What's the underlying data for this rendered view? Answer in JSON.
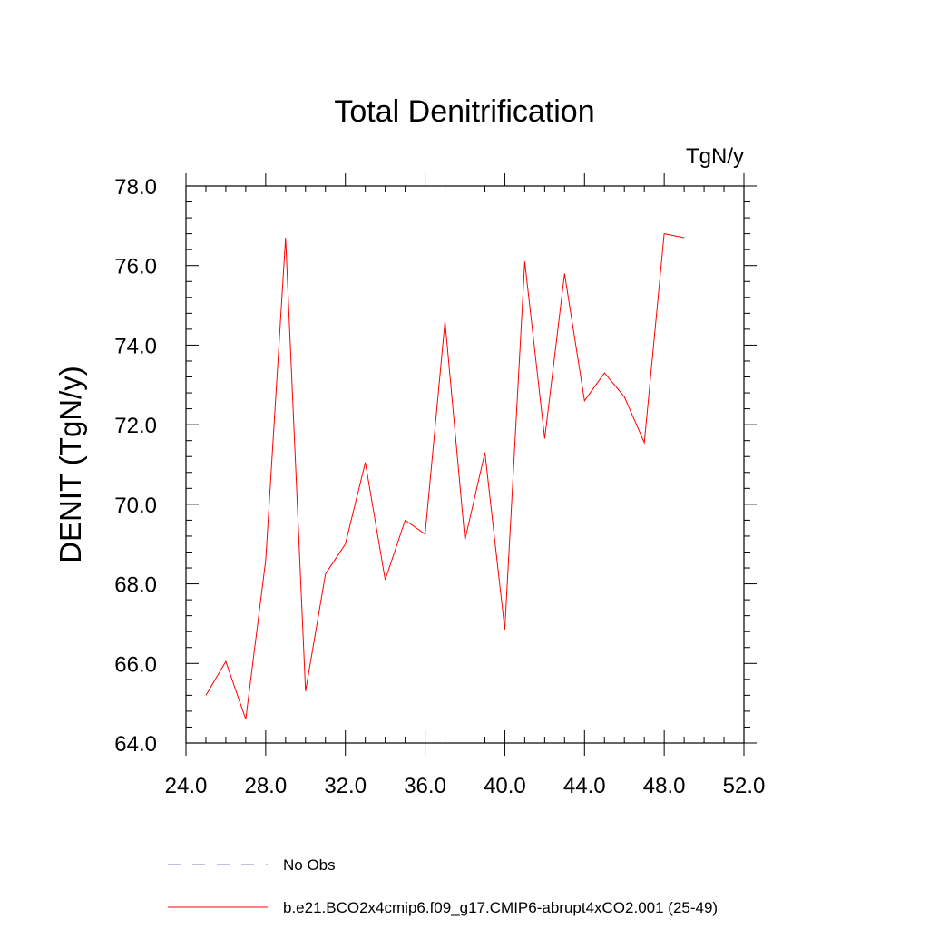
{
  "chart_data": {
    "type": "line",
    "title": "Total Denitrification",
    "units_label": "TgN/y",
    "xlabel": "",
    "ylabel": "DENIT  (TgN/y)",
    "xlim": [
      24,
      52
    ],
    "ylim": [
      64,
      78
    ],
    "x_ticks": [
      24,
      28,
      32,
      36,
      40,
      44,
      48,
      52
    ],
    "x_tick_labels": [
      "24.0",
      "28.0",
      "32.0",
      "36.0",
      "40.0",
      "44.0",
      "48.0",
      "52.0"
    ],
    "y_ticks": [
      64,
      66,
      68,
      70,
      72,
      74,
      76,
      78
    ],
    "y_tick_labels": [
      "64.0",
      "66.0",
      "68.0",
      "70.0",
      "72.0",
      "74.0",
      "76.0",
      "78.0"
    ],
    "x_minor_step": 1,
    "y_minor_step": 0.4,
    "grid": false,
    "legend_position": "bottom",
    "series": [
      {
        "name": "b.e21.BCO2x4cmip6.f09_g17.CMIP6-abrupt4xCO2.001 (25-49)",
        "color": "#ff0000",
        "style": "solid",
        "x": [
          25,
          26,
          27,
          28,
          29,
          30,
          31,
          32,
          33,
          34,
          35,
          36,
          37,
          38,
          39,
          40,
          41,
          42,
          43,
          44,
          45,
          46,
          47,
          48,
          49
        ],
        "values": [
          65.2,
          66.05,
          64.6,
          68.6,
          76.7,
          65.3,
          68.25,
          69.0,
          71.05,
          68.1,
          69.6,
          69.25,
          74.6,
          69.1,
          71.3,
          66.85,
          76.1,
          71.65,
          75.8,
          72.6,
          73.3,
          72.7,
          71.55,
          76.8,
          76.7
        ]
      }
    ],
    "legend": [
      {
        "label": "No Obs",
        "color": "#8080c0",
        "style": "dashed"
      },
      {
        "label": "b.e21.BCO2x4cmip6.f09_g17.CMIP6-abrupt4xCO2.001 (25-49)",
        "color": "#ff0000",
        "style": "solid"
      }
    ]
  }
}
